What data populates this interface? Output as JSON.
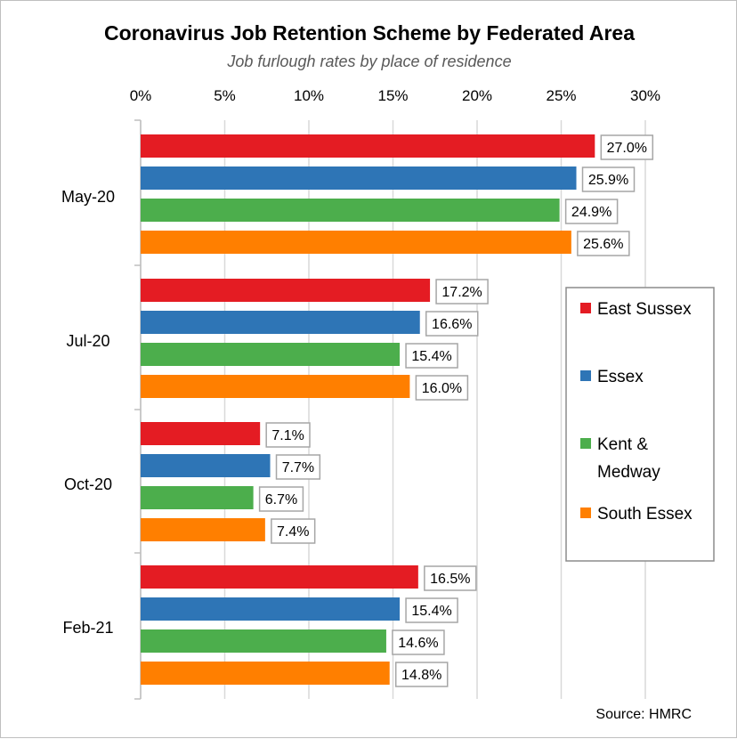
{
  "chart_data": {
    "type": "bar",
    "orientation": "horizontal",
    "title": "Coronavirus Job Retention Scheme by Federated Area",
    "subtitle": "Job furlough rates by place of residence",
    "source": "Source: HMRC",
    "categories": [
      "May-20",
      "Jul-20",
      "Oct-20",
      "Feb-21"
    ],
    "xlim": [
      0,
      30
    ],
    "x_ticks": [
      "0%",
      "5%",
      "10%",
      "15%",
      "20%",
      "25%",
      "30%"
    ],
    "x_tick_values": [
      0,
      5,
      10,
      15,
      20,
      25,
      30
    ],
    "grid": true,
    "legend_position": "right",
    "series": [
      {
        "name": "East Sussex",
        "color": "#e41c23",
        "values": [
          27.0,
          17.2,
          7.1,
          16.5
        ],
        "labels": [
          "27.0%",
          "17.2%",
          "7.1%",
          "16.5%"
        ]
      },
      {
        "name": "Essex",
        "color": "#2e75b6",
        "values": [
          25.9,
          16.6,
          7.7,
          15.4
        ],
        "labels": [
          "25.9%",
          "16.6%",
          "7.7%",
          "15.4%"
        ]
      },
      {
        "name": "Kent & Medway",
        "name_lines": [
          "Kent &",
          "Medway"
        ],
        "color": "#4cae4c",
        "values": [
          24.9,
          15.4,
          6.7,
          14.6
        ],
        "labels": [
          "24.9%",
          "15.4%",
          "6.7%",
          "14.6%"
        ]
      },
      {
        "name": "South Essex",
        "color": "#ff7f00",
        "values": [
          25.6,
          16.0,
          7.4,
          14.8
        ],
        "labels": [
          "25.6%",
          "16.0%",
          "7.4%",
          "14.8%"
        ]
      }
    ]
  }
}
